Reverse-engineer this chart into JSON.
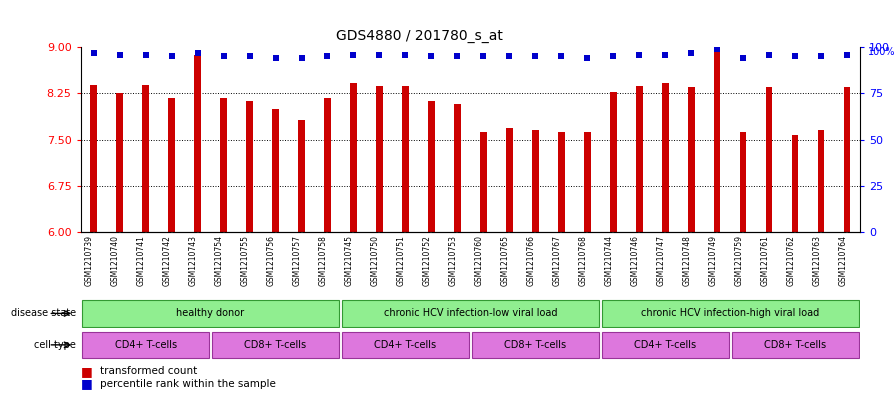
{
  "title": "GDS4880 / 201780_s_at",
  "samples": [
    "GSM1210739",
    "GSM1210740",
    "GSM1210741",
    "GSM1210742",
    "GSM1210743",
    "GSM1210754",
    "GSM1210755",
    "GSM1210756",
    "GSM1210757",
    "GSM1210758",
    "GSM1210745",
    "GSM1210750",
    "GSM1210751",
    "GSM1210752",
    "GSM1210753",
    "GSM1210760",
    "GSM1210765",
    "GSM1210766",
    "GSM1210767",
    "GSM1210768",
    "GSM1210744",
    "GSM1210746",
    "GSM1210747",
    "GSM1210748",
    "GSM1210749",
    "GSM1210759",
    "GSM1210761",
    "GSM1210762",
    "GSM1210763",
    "GSM1210764"
  ],
  "bar_values": [
    8.38,
    8.25,
    8.38,
    8.17,
    8.87,
    8.17,
    8.13,
    8.0,
    7.82,
    8.17,
    8.42,
    8.37,
    8.37,
    8.13,
    8.08,
    7.62,
    7.68,
    7.65,
    7.63,
    7.62,
    8.27,
    8.37,
    8.42,
    8.35,
    8.95,
    7.63,
    8.35,
    7.58,
    7.65,
    8.35
  ],
  "percentile_values": [
    97,
    96,
    96,
    95,
    97,
    95,
    95,
    94,
    94,
    95,
    96,
    96,
    96,
    95,
    95,
    95,
    95,
    95,
    95,
    94,
    95,
    96,
    96,
    97,
    99,
    94,
    96,
    95,
    95,
    96
  ],
  "ylim_left": [
    6,
    9
  ],
  "ylim_right": [
    0,
    100
  ],
  "yticks_left": [
    6,
    6.75,
    7.5,
    8.25,
    9
  ],
  "yticks_right": [
    0,
    25,
    50,
    75,
    100
  ],
  "bar_color": "#CC0000",
  "dot_color": "#0000CC",
  "bar_width": 0.25,
  "disease_groups": [
    {
      "label": "healthy donor",
      "start": 0,
      "end": 9
    },
    {
      "label": "chronic HCV infection-low viral load",
      "start": 10,
      "end": 19
    },
    {
      "label": "chronic HCV infection-high viral load",
      "start": 20,
      "end": 29
    }
  ],
  "cell_groups": [
    {
      "label": "CD4+ T-cells",
      "start": 0,
      "end": 4
    },
    {
      "label": "CD8+ T-cells",
      "start": 5,
      "end": 9
    },
    {
      "label": "CD4+ T-cells",
      "start": 10,
      "end": 14
    },
    {
      "label": "CD8+ T-cells",
      "start": 15,
      "end": 19
    },
    {
      "label": "CD4+ T-cells",
      "start": 20,
      "end": 24
    },
    {
      "label": "CD8+ T-cells",
      "start": 25,
      "end": 29
    }
  ],
  "green_color": "#90EE90",
  "green_edge": "#339933",
  "purple_color": "#DD77DD",
  "purple_edge": "#993399",
  "legend_bar_label": "transformed count",
  "legend_dot_label": "percentile rank within the sample",
  "disease_state_label": "disease state",
  "cell_type_label": "cell type",
  "xtick_bg": "#D0D0D0"
}
